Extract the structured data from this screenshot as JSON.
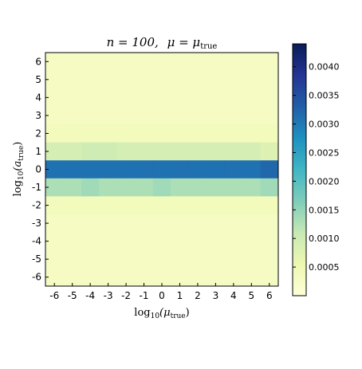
{
  "chart_data": {
    "type": "heatmap",
    "title": "n = 100,  μ = μ_true",
    "title_parts": {
      "n_part": "n = 100,",
      "mu_part": "μ = μ",
      "mu_sub": "true"
    },
    "xlabel": "log10(μ_true)",
    "xlabel_parts": {
      "base": "log",
      "base_sub": "10",
      "open": "(μ",
      "sub": "true",
      "close": ")"
    },
    "ylabel": "log10(a_true)",
    "ylabel_parts": {
      "base": "log",
      "base_sub": "10",
      "open": "(a",
      "sub": "true",
      "close": ")"
    },
    "x_ticks": [
      "-6",
      "-5",
      "-4",
      "-3",
      "-2",
      "-1",
      "0",
      "1",
      "2",
      "3",
      "4",
      "5",
      "6"
    ],
    "y_ticks": [
      "6",
      "5",
      "4",
      "3",
      "2",
      "1",
      "0",
      "-1",
      "-2",
      "-3",
      "-4",
      "-5",
      "-6"
    ],
    "x_values": [
      -6,
      -5,
      -4,
      -3,
      -2,
      -1,
      0,
      1,
      2,
      3,
      4,
      5,
      6
    ],
    "y_values": [
      6,
      5,
      4,
      3,
      2,
      1,
      0,
      -1,
      -2,
      -3,
      -4,
      -5,
      -6
    ],
    "z_rows": [
      [
        0.0003,
        0.0003,
        0.0003,
        0.0003,
        0.0003,
        0.0003,
        0.0003,
        0.0003,
        0.0003,
        0.0003,
        0.0003,
        0.0003,
        0.0003
      ],
      [
        0.0003,
        0.0003,
        0.0003,
        0.0003,
        0.0003,
        0.0003,
        0.0003,
        0.0003,
        0.0003,
        0.0003,
        0.0003,
        0.0003,
        0.0003
      ],
      [
        0.0003,
        0.0003,
        0.0003,
        0.0003,
        0.0003,
        0.0003,
        0.0003,
        0.0003,
        0.0003,
        0.0003,
        0.0003,
        0.0003,
        0.0003
      ],
      [
        0.0003,
        0.0003,
        0.0003,
        0.0003,
        0.0003,
        0.0003,
        0.0003,
        0.0003,
        0.0003,
        0.0003,
        0.0003,
        0.0003,
        0.0003
      ],
      [
        0.0004,
        0.0004,
        0.0004,
        0.0004,
        0.0004,
        0.0004,
        0.0004,
        0.0004,
        0.0004,
        0.0004,
        0.0004,
        0.0004,
        0.0004
      ],
      [
        0.0009,
        0.0009,
        0.001,
        0.001,
        0.0009,
        0.0009,
        0.0009,
        0.0009,
        0.0009,
        0.0009,
        0.0009,
        0.0009,
        0.0008
      ],
      [
        0.0031,
        0.0031,
        0.0031,
        0.0031,
        0.0031,
        0.0031,
        0.0031,
        0.0031,
        0.0031,
        0.0031,
        0.0031,
        0.0031,
        0.0032
      ],
      [
        0.0013,
        0.0013,
        0.0014,
        0.0013,
        0.0013,
        0.0013,
        0.0014,
        0.0013,
        0.0013,
        0.0013,
        0.0013,
        0.0013,
        0.0014
      ],
      [
        0.0004,
        0.0004,
        0.0004,
        0.0004,
        0.0004,
        0.0004,
        0.0004,
        0.0004,
        0.0004,
        0.0004,
        0.0004,
        0.0004,
        0.0004
      ],
      [
        0.0003,
        0.0003,
        0.0003,
        0.0003,
        0.0003,
        0.0003,
        0.0003,
        0.0003,
        0.0003,
        0.0003,
        0.0003,
        0.0003,
        0.0003
      ],
      [
        0.0003,
        0.0003,
        0.0003,
        0.0003,
        0.0003,
        0.0003,
        0.0003,
        0.0003,
        0.0003,
        0.0003,
        0.0003,
        0.0003,
        0.0003
      ],
      [
        0.0003,
        0.0003,
        0.0003,
        0.0003,
        0.0003,
        0.0003,
        0.0003,
        0.0003,
        0.0003,
        0.0003,
        0.0003,
        0.0003,
        0.0003
      ],
      [
        0.0003,
        0.0003,
        0.0003,
        0.0003,
        0.0003,
        0.0003,
        0.0003,
        0.0003,
        0.0003,
        0.0003,
        0.0003,
        0.0003,
        0.0003
      ]
    ],
    "colormap": "YlGnBu",
    "color_stops": [
      "#ffffd9",
      "#edf8b1",
      "#c7e9b4",
      "#7fcdbb",
      "#41b6c4",
      "#1d91c0",
      "#225ea8",
      "#253494",
      "#081d58"
    ],
    "colorbar": {
      "range": [
        0.0,
        0.0044
      ],
      "ticks": [
        0.0005,
        0.001,
        0.0015,
        0.002,
        0.0025,
        0.003,
        0.0035,
        0.004
      ],
      "tick_labels": [
        "0.0005",
        "0.0010",
        "0.0015",
        "0.0020",
        "0.0025",
        "0.0030",
        "0.0035",
        "0.0040"
      ]
    },
    "grid": false
  }
}
